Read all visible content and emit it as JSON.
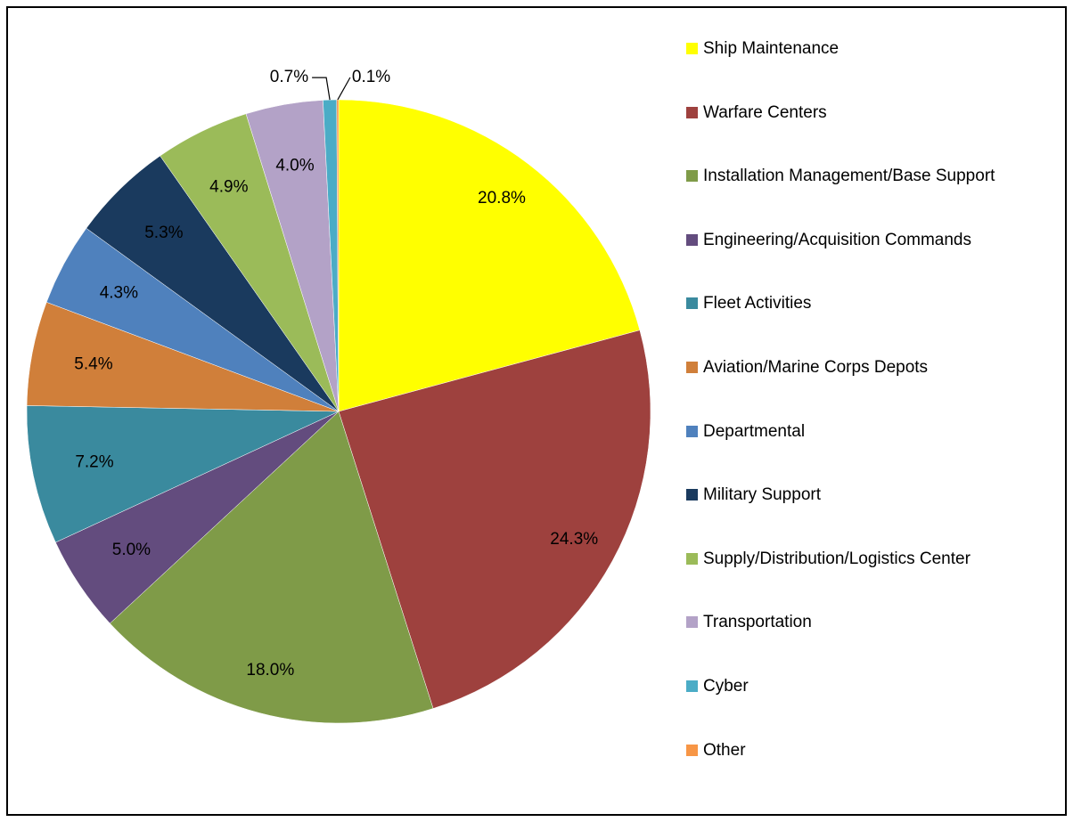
{
  "chart_data": {
    "type": "pie",
    "categories": [
      "Ship Maintenance",
      "Warfare Centers",
      "Installation Management/Base Support",
      "Engineering/Acquisition Commands",
      "Fleet Activities",
      "Aviation/Marine Corps Depots",
      "Departmental",
      "Military Support",
      "Supply/Distribution/Logistics Center",
      "Transportation",
      "Cyber",
      "Other"
    ],
    "values": [
      20.8,
      24.3,
      18.0,
      5.0,
      7.2,
      5.4,
      4.3,
      5.3,
      4.9,
      4.0,
      0.7,
      0.1
    ],
    "value_labels": [
      "20.8%",
      "24.3%",
      "18.0%",
      "5.0%",
      "7.2%",
      "5.4%",
      "4.3%",
      "5.3%",
      "4.9%",
      "4.0%",
      "0.7%",
      "0.1%"
    ],
    "colors": [
      "#ffff00",
      "#9e413e",
      "#7f9b48",
      "#634c7e",
      "#3a8a9e",
      "#d07f3a",
      "#4f81bd",
      "#1a3a5e",
      "#9bbb59",
      "#b3a2c7",
      "#4bacc6",
      "#f79646"
    ]
  }
}
